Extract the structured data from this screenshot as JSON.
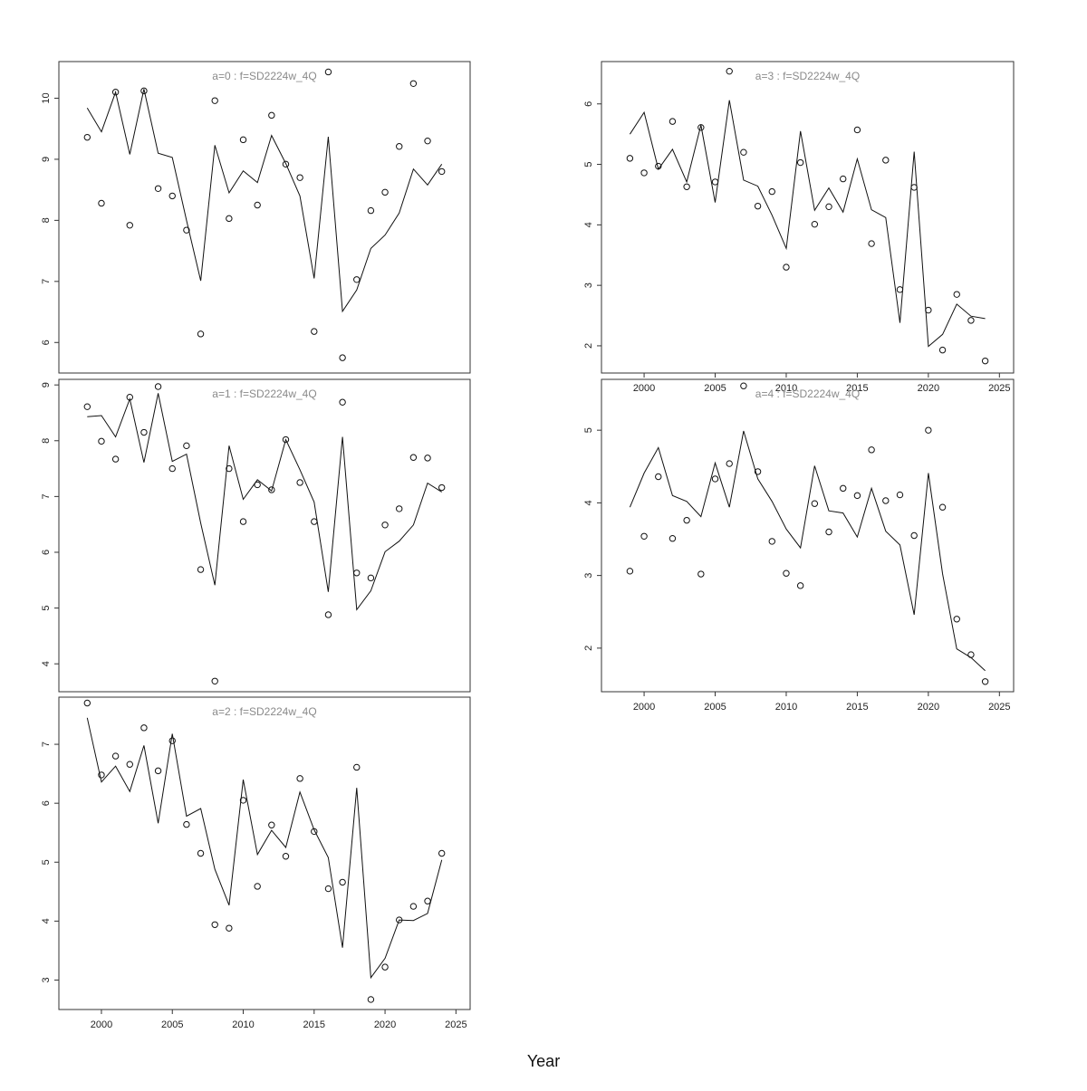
{
  "xlabel": "Year",
  "chart_data": [
    {
      "type": "scatter",
      "title": "a=0 : f=SD2224w_4Q",
      "x": [
        1999,
        2000,
        2001,
        2002,
        2003,
        2004,
        2005,
        2006,
        2007,
        2008,
        2009,
        2010,
        2011,
        2012,
        2013,
        2014,
        2015,
        2016,
        2017,
        2018,
        2019,
        2020,
        2021,
        2022,
        2023,
        2024
      ],
      "observed": [
        9.36,
        8.28,
        10.1,
        7.92,
        10.12,
        8.52,
        8.4,
        7.84,
        6.14,
        9.96,
        8.03,
        9.32,
        8.25,
        9.72,
        8.92,
        8.7,
        6.18,
        10.43,
        5.75,
        7.03,
        8.16,
        8.46,
        9.21,
        10.24,
        9.3,
        8.8
      ],
      "fitted": [
        9.84,
        9.45,
        10.1,
        9.08,
        10.15,
        9.1,
        9.03,
        8.0,
        7.01,
        9.23,
        8.45,
        8.81,
        8.62,
        9.39,
        8.93,
        8.4,
        7.05,
        9.37,
        6.51,
        6.86,
        7.54,
        7.76,
        8.12,
        8.84,
        8.58,
        8.92
      ],
      "ylim": [
        5.5,
        10.6
      ],
      "yticks": [
        6,
        7,
        8,
        9,
        10
      ],
      "xlim": [
        1997,
        2026
      ],
      "xticks": [],
      "grid": false
    },
    {
      "type": "scatter",
      "title": "a=1 : f=SD2224w_4Q",
      "x": [
        1999,
        2000,
        2001,
        2002,
        2003,
        2004,
        2005,
        2006,
        2007,
        2008,
        2009,
        2010,
        2011,
        2012,
        2013,
        2014,
        2015,
        2016,
        2017,
        2018,
        2019,
        2020,
        2021,
        2022,
        2023,
        2024
      ],
      "observed": [
        8.61,
        7.99,
        7.67,
        8.78,
        8.15,
        8.97,
        7.5,
        7.91,
        5.69,
        3.69,
        7.5,
        6.55,
        7.21,
        7.12,
        8.02,
        7.25,
        6.55,
        4.88,
        8.69,
        5.63,
        5.54,
        6.49,
        6.78,
        7.7,
        7.69,
        7.16
      ],
      "fitted": [
        8.43,
        8.45,
        8.07,
        8.75,
        7.61,
        8.85,
        7.63,
        7.76,
        6.52,
        5.41,
        7.91,
        6.95,
        7.3,
        7.1,
        8.02,
        7.48,
        6.9,
        5.29,
        8.07,
        4.97,
        5.31,
        6.01,
        6.2,
        6.49,
        7.24,
        7.08
      ],
      "ylim": [
        3.5,
        9.1
      ],
      "yticks": [
        4,
        5,
        6,
        7,
        8,
        9
      ],
      "xlim": [
        1997,
        2026
      ],
      "xticks": [],
      "grid": false
    },
    {
      "type": "scatter",
      "title": "a=2 : f=SD2224w_4Q",
      "x": [
        1999,
        2000,
        2001,
        2002,
        2003,
        2004,
        2005,
        2006,
        2007,
        2008,
        2009,
        2010,
        2011,
        2012,
        2013,
        2014,
        2015,
        2016,
        2017,
        2018,
        2019,
        2020,
        2021,
        2022,
        2023,
        2024
      ],
      "observed": [
        7.7,
        6.48,
        6.8,
        6.66,
        7.28,
        6.55,
        7.06,
        5.64,
        5.15,
        3.94,
        3.88,
        6.05,
        4.59,
        5.63,
        5.1,
        6.42,
        5.52,
        4.55,
        4.66,
        6.61,
        2.67,
        3.22,
        4.02,
        4.25,
        4.34,
        5.15
      ],
      "fitted": [
        7.45,
        6.36,
        6.63,
        6.2,
        6.98,
        5.66,
        7.18,
        5.78,
        5.91,
        4.88,
        4.27,
        6.4,
        5.13,
        5.54,
        5.25,
        6.19,
        5.55,
        5.08,
        3.55,
        6.26,
        3.04,
        3.37,
        4.02,
        4.01,
        4.13,
        5.04
      ],
      "ylim": [
        2.5,
        7.8
      ],
      "yticks": [
        3,
        4,
        5,
        6,
        7
      ],
      "xlim": [
        1997,
        2026
      ],
      "xticks": [
        2000,
        2005,
        2010,
        2015,
        2020,
        2025
      ],
      "grid": false
    },
    {
      "type": "scatter",
      "title": "a=3 : f=SD2224w_4Q",
      "x": [
        1999,
        2000,
        2001,
        2002,
        2003,
        2004,
        2005,
        2006,
        2007,
        2008,
        2009,
        2010,
        2011,
        2012,
        2013,
        2014,
        2015,
        2016,
        2017,
        2018,
        2019,
        2020,
        2021,
        2022,
        2023,
        2024
      ],
      "observed": [
        5.1,
        4.86,
        4.97,
        5.71,
        4.63,
        5.61,
        4.71,
        6.54,
        5.2,
        4.31,
        4.55,
        3.3,
        5.03,
        4.01,
        4.3,
        4.76,
        5.57,
        3.69,
        5.07,
        2.93,
        4.62,
        2.59,
        1.93,
        2.85,
        2.42,
        1.75
      ],
      "fitted": [
        5.5,
        5.86,
        4.92,
        5.25,
        4.71,
        5.65,
        4.37,
        6.06,
        4.74,
        4.64,
        4.16,
        3.61,
        5.55,
        4.24,
        4.61,
        4.21,
        5.09,
        4.25,
        4.12,
        2.38,
        5.21,
        1.99,
        2.19,
        2.69,
        2.49,
        2.45
      ],
      "ylim": [
        1.55,
        6.7
      ],
      "yticks": [
        2,
        3,
        4,
        5,
        6
      ],
      "xlim": [
        1997,
        2026
      ],
      "xticks": [
        2000,
        2005,
        2010,
        2015,
        2020,
        2025
      ],
      "grid": false
    },
    {
      "type": "scatter",
      "title": "a=4 : f=SD2224w_4Q",
      "x": [
        1999,
        2000,
        2001,
        2002,
        2003,
        2004,
        2005,
        2006,
        2007,
        2008,
        2009,
        2010,
        2011,
        2012,
        2013,
        2014,
        2015,
        2016,
        2017,
        2018,
        2019,
        2020,
        2021,
        2022,
        2023,
        2024
      ],
      "observed": [
        3.06,
        3.54,
        4.36,
        3.51,
        3.76,
        3.02,
        4.33,
        4.54,
        5.61,
        4.43,
        3.47,
        3.03,
        2.86,
        3.99,
        3.6,
        4.2,
        4.1,
        4.73,
        4.03,
        4.11,
        3.55,
        5.0,
        3.94,
        2.4,
        1.91,
        1.54
      ],
      "fitted": [
        3.94,
        4.41,
        4.76,
        4.1,
        4.02,
        3.81,
        4.55,
        3.94,
        4.99,
        4.33,
        4.02,
        3.64,
        3.38,
        4.51,
        3.89,
        3.86,
        3.53,
        4.2,
        3.61,
        3.42,
        2.46,
        4.41,
        3.02,
        1.99,
        1.87,
        1.69
      ],
      "ylim": [
        1.4,
        5.7
      ],
      "yticks": [
        2,
        3,
        4,
        5
      ],
      "xlim": [
        1997,
        2026
      ],
      "xticks": [
        2000,
        2005,
        2010,
        2015,
        2020,
        2025
      ],
      "grid": false
    }
  ]
}
